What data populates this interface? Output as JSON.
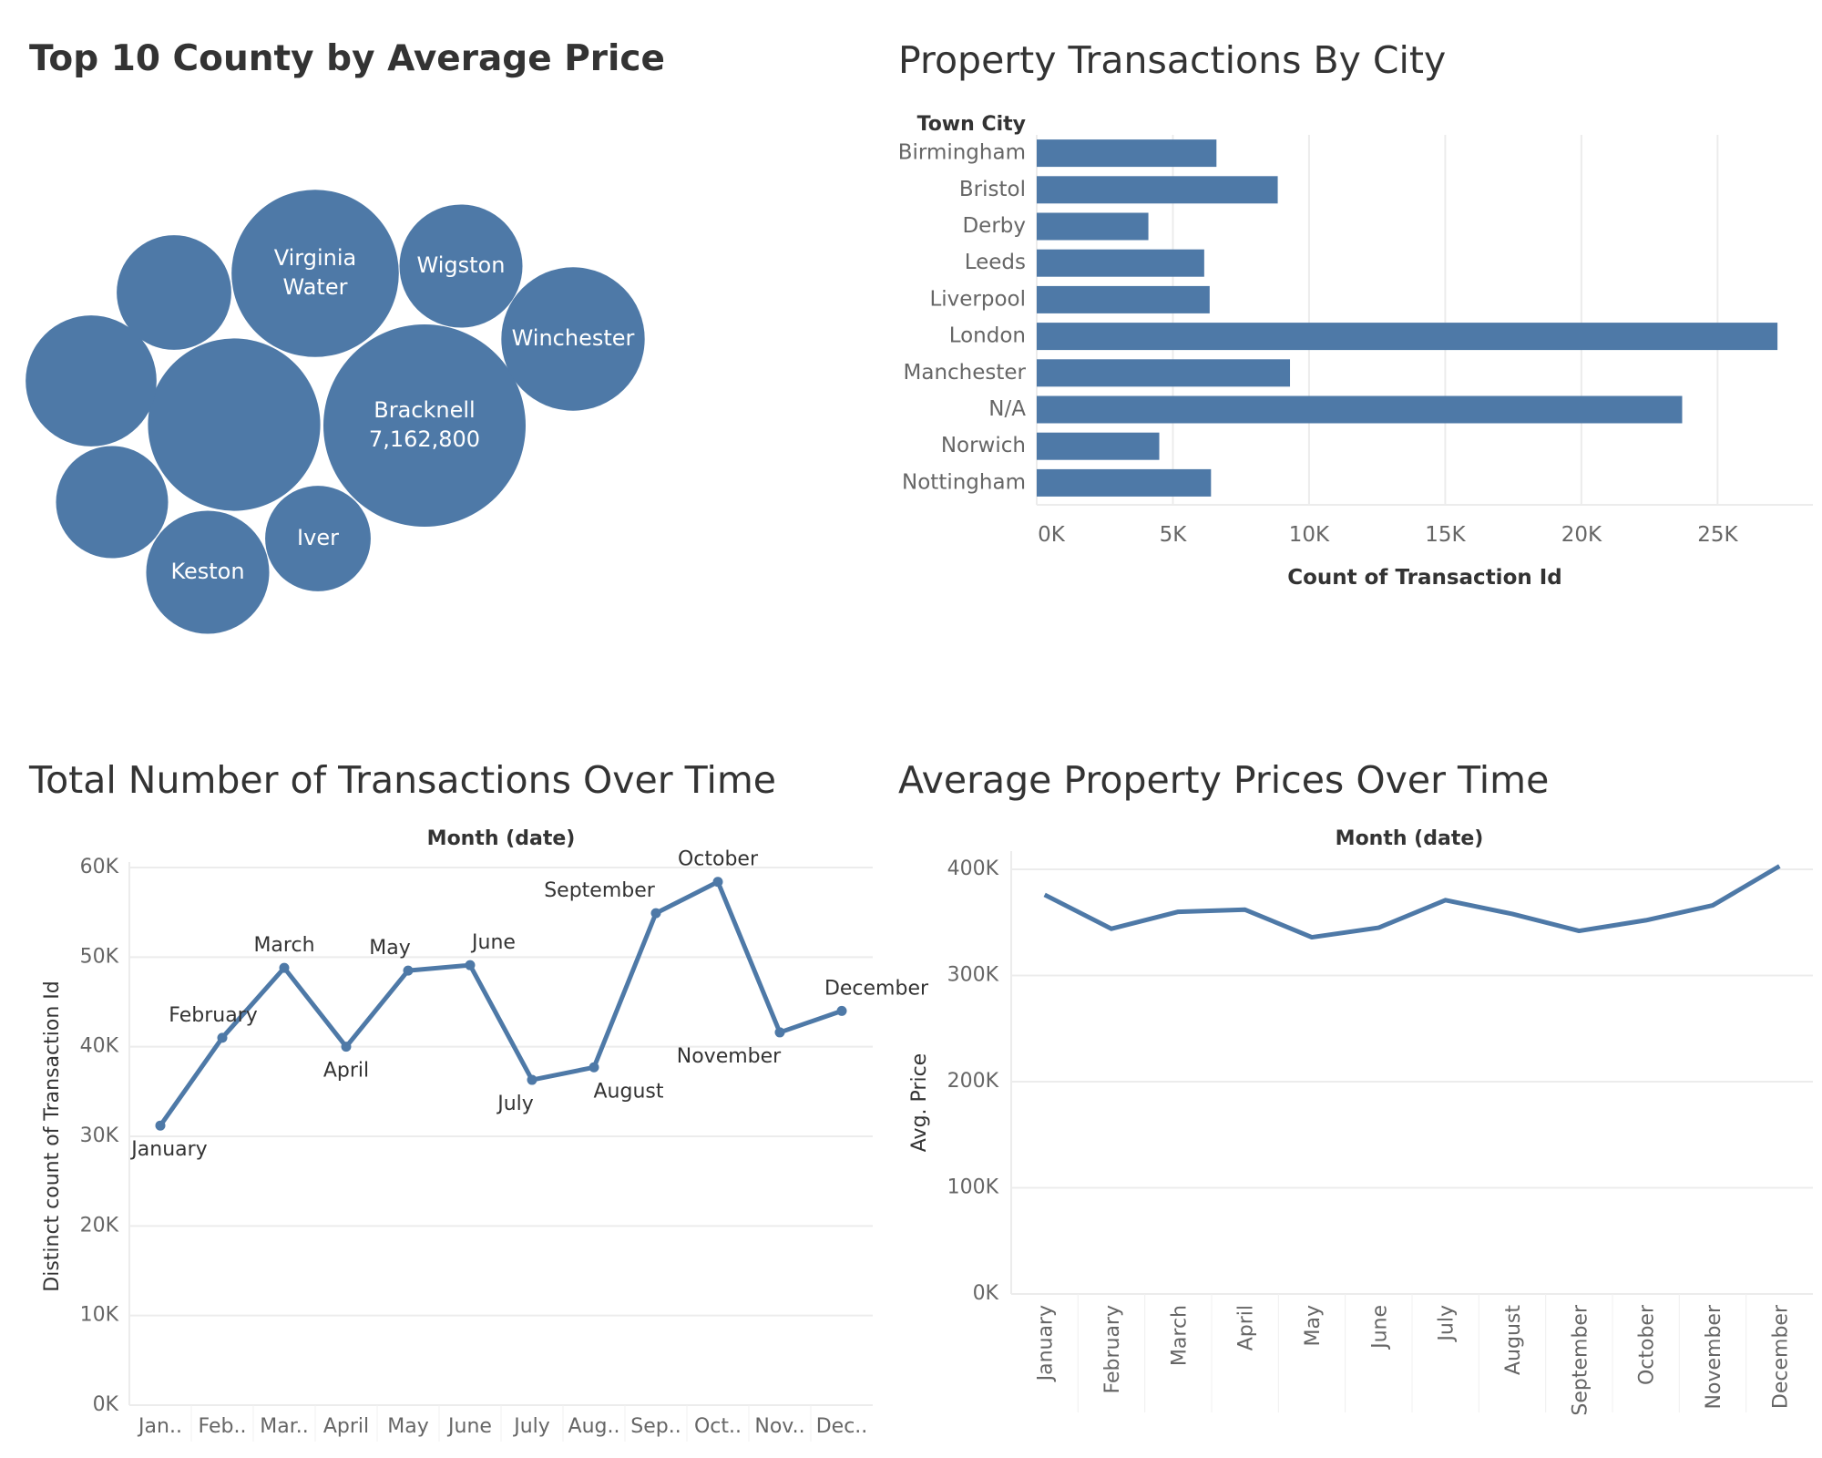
{
  "colors": {
    "mark": "#4E79A7",
    "grid": "#ECECEC",
    "axis_text": "#666666",
    "label_text": "#333333",
    "title_text": "#333333"
  },
  "charts": [
    {
      "title": "Top 10 County by Average Price"
    },
    {
      "title": "Property Transactions By City"
    },
    {
      "title": "Total Number of Transactions Over Time"
    },
    {
      "title": "Average Property Prices Over Time"
    }
  ],
  "chart_data": [
    {
      "type": "bubble",
      "title": "Top 10 County by Average Price",
      "bubbles": [
        {
          "label": "Bracknell",
          "value_label": "7,162,800",
          "value": 7162800
        },
        {
          "label": "",
          "value": 5200000
        },
        {
          "label": "Virginia Water",
          "value": 4900000
        },
        {
          "label": "Winchester",
          "value": 3600000
        },
        {
          "label": "",
          "value": 3000000
        },
        {
          "label": "Keston",
          "value": 2650000
        },
        {
          "label": "Wigston",
          "value": 2650000
        },
        {
          "label": "",
          "value": 2300000
        },
        {
          "label": "",
          "value": 2200000
        },
        {
          "label": "Iver",
          "value": 1950000
        }
      ]
    },
    {
      "type": "bar",
      "title": "Property Transactions By City",
      "row_header": "Town City",
      "xlabel": "Count of Transaction Id",
      "categories": [
        "Birmingham",
        "Bristol",
        "Derby",
        "Leeds",
        "Liverpool",
        "London",
        "Manchester",
        "N/A",
        "Norwich",
        "Nottingham"
      ],
      "values": [
        6600,
        8850,
        4100,
        6150,
        6350,
        27200,
        9300,
        23700,
        4500,
        6400
      ],
      "xlim": [
        0,
        28500
      ],
      "xticks": [
        0,
        5000,
        10000,
        15000,
        20000,
        25000
      ],
      "xtick_labels": [
        "0K",
        "5K",
        "10K",
        "15K",
        "20K",
        "25K"
      ],
      "grid": true
    },
    {
      "type": "line",
      "title": "Total Number of Transactions Over Time",
      "header": "Month (date)",
      "ylabel": "Distinct count of Transaction Id",
      "x": [
        "January",
        "February",
        "March",
        "April",
        "May",
        "June",
        "July",
        "August",
        "September",
        "October",
        "November",
        "December"
      ],
      "xtick_labels": [
        "Jan..",
        "Feb..",
        "Mar..",
        "April",
        "May",
        "June",
        "July",
        "Aug..",
        "Sep..",
        "Oct..",
        "Nov..",
        "Dec.."
      ],
      "point_labels": [
        "January",
        "February",
        "March",
        "April",
        "May",
        "June",
        "July",
        "August",
        "September",
        "October",
        "November",
        "December"
      ],
      "values": [
        31200,
        41000,
        48800,
        40000,
        48500,
        49100,
        36300,
        37700,
        54900,
        58400,
        41600,
        44000
      ],
      "ylim": [
        0,
        60000
      ],
      "yticks": [
        0,
        10000,
        20000,
        30000,
        40000,
        50000,
        60000
      ],
      "ytick_labels": [
        "0K",
        "10K",
        "20K",
        "30K",
        "40K",
        "50K",
        "60K"
      ],
      "markers": true,
      "grid": true
    },
    {
      "type": "line",
      "title": "Average Property Prices Over Time",
      "header": "Month (date)",
      "ylabel": "Avg. Price",
      "x": [
        "January",
        "February",
        "March",
        "April",
        "May",
        "June",
        "July",
        "August",
        "September",
        "October",
        "November",
        "December"
      ],
      "xtick_labels": [
        "January",
        "February",
        "March",
        "April",
        "May",
        "June",
        "July",
        "August",
        "September",
        "October",
        "November",
        "December"
      ],
      "values": [
        376000,
        344000,
        360000,
        362000,
        336000,
        345000,
        371000,
        358000,
        342000,
        352000,
        366000,
        403000
      ],
      "ylim": [
        0,
        412000
      ],
      "yticks": [
        0,
        100000,
        200000,
        300000,
        400000
      ],
      "ytick_labels": [
        "0K",
        "100K",
        "200K",
        "300K",
        "400K"
      ],
      "markers": false,
      "grid": true
    }
  ]
}
